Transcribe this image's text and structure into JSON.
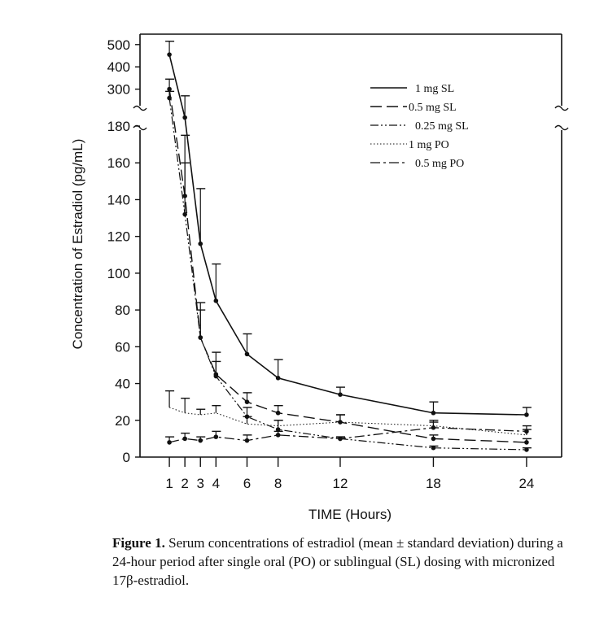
{
  "chart_data": {
    "type": "line",
    "xlabel": "TIME  (Hours)",
    "ylabel": "Concentration of Estradiol  (pg/mL)",
    "x": [
      1,
      2,
      3,
      4,
      6,
      8,
      12,
      18,
      24
    ],
    "x_ticks": [
      "1",
      "2",
      "3",
      "4",
      "6",
      "8",
      "12",
      "18",
      "24"
    ],
    "y_ticks_lower": [
      "0",
      "20",
      "40",
      "60",
      "80",
      "100",
      "120",
      "140",
      "160",
      "180"
    ],
    "y_ticks_upper": [
      "300",
      "400",
      "500"
    ],
    "ylim": [
      0,
      520
    ],
    "y_axis_break": [
      180,
      250
    ],
    "grid": false,
    "legend_placement": "top-right",
    "series": [
      {
        "name": "1 mg SL",
        "style": "solid",
        "values": [
          455,
          215,
          116,
          85,
          56,
          43,
          34,
          24,
          23
        ],
        "sd_upper": [
          515,
          270,
          146,
          105,
          67,
          53,
          38,
          30,
          27
        ]
      },
      {
        "name": "0.5 mg SL",
        "style": "dashed",
        "values": [
          300,
          142,
          65,
          45,
          30,
          24,
          19,
          10,
          8
        ],
        "sd_upper": [
          345,
          175,
          84,
          57,
          35,
          28,
          23,
          12,
          10
        ]
      },
      {
        "name": "0.25 mg SL",
        "style": "dash-dot-dot",
        "values": [
          260,
          132,
          65,
          44,
          22,
          15,
          10,
          5,
          4
        ],
        "sd_upper": [
          290,
          160,
          80,
          52,
          27,
          20,
          11,
          6,
          5
        ]
      },
      {
        "name": "1 mg PO",
        "style": "dotted",
        "values": [
          27,
          24,
          23,
          24,
          18,
          17,
          19,
          17,
          12
        ],
        "sd_upper": [
          36,
          32,
          26,
          28,
          22,
          20,
          23,
          19,
          15
        ]
      },
      {
        "name": "0.5 mg PO",
        "style": "dash-dot",
        "values": [
          8,
          10,
          9,
          11,
          9,
          12,
          10,
          16,
          14
        ],
        "sd_upper": [
          11,
          13,
          11,
          14,
          12,
          14,
          11,
          20,
          17
        ]
      }
    ]
  },
  "caption": {
    "label": "Figure 1.",
    "text": "Serum concentrations of estradiol (mean ± standard deviation) during a 24-hour period after single oral (PO) or sublingual (SL) dosing with micronized 17β-estradiol."
  }
}
